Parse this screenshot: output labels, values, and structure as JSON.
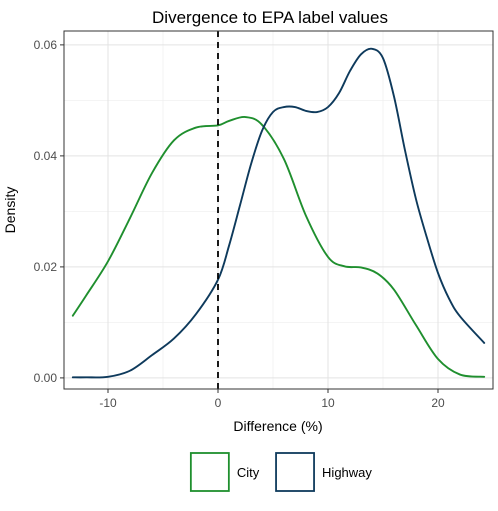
{
  "chart_data": {
    "type": "line",
    "title": "Divergence to EPA label values",
    "xlabel": "Difference (%)",
    "ylabel": "Density",
    "xlim": [
      -14.0,
      25.0
    ],
    "ylim": [
      -0.002,
      0.0625
    ],
    "x_ticks": [
      -10,
      0,
      10,
      20
    ],
    "x_tick_labels": [
      "-10",
      "0",
      "10",
      "20"
    ],
    "y_ticks": [
      0.0,
      0.02,
      0.04,
      0.06
    ],
    "y_tick_labels": [
      "0.00",
      "0.02",
      "0.04",
      "0.06"
    ],
    "grid": true,
    "legend_position": "bottom",
    "reference_line": {
      "x": 0,
      "style": "dashed",
      "color": "#000000"
    },
    "series": [
      {
        "name": "City",
        "color": "#1f8f2e",
        "x": [
          -13.2,
          -12,
          -10,
          -8,
          -6,
          -4,
          -2,
          0,
          1,
          2.5,
          4,
          6,
          8,
          10,
          11.5,
          13,
          14.5,
          16,
          18,
          20,
          22,
          24.2
        ],
        "y": [
          0.0112,
          0.0148,
          0.021,
          0.0288,
          0.0369,
          0.0428,
          0.0451,
          0.0455,
          0.0463,
          0.047,
          0.0456,
          0.0394,
          0.0292,
          0.0218,
          0.0201,
          0.0199,
          0.0188,
          0.0159,
          0.0095,
          0.0034,
          0.0006,
          0.0002
        ]
      },
      {
        "name": "Highway",
        "color": "#0e3a5c",
        "x": [
          -13.2,
          -12,
          -10,
          -8,
          -6,
          -4,
          -2,
          0,
          1,
          2,
          3,
          4,
          5,
          6,
          7,
          8,
          9,
          10,
          11,
          12,
          13,
          14,
          15,
          16,
          17,
          18,
          19,
          20,
          21,
          22,
          24.2
        ],
        "y": [
          0.0001,
          0.0001,
          0.0002,
          0.0013,
          0.0041,
          0.0071,
          0.0115,
          0.0177,
          0.0238,
          0.0311,
          0.0385,
          0.0445,
          0.0479,
          0.0488,
          0.0488,
          0.0481,
          0.0479,
          0.0488,
          0.0513,
          0.0553,
          0.0583,
          0.0593,
          0.0576,
          0.0507,
          0.041,
          0.0322,
          0.0252,
          0.0189,
          0.0143,
          0.0111,
          0.0063
        ]
      }
    ]
  }
}
